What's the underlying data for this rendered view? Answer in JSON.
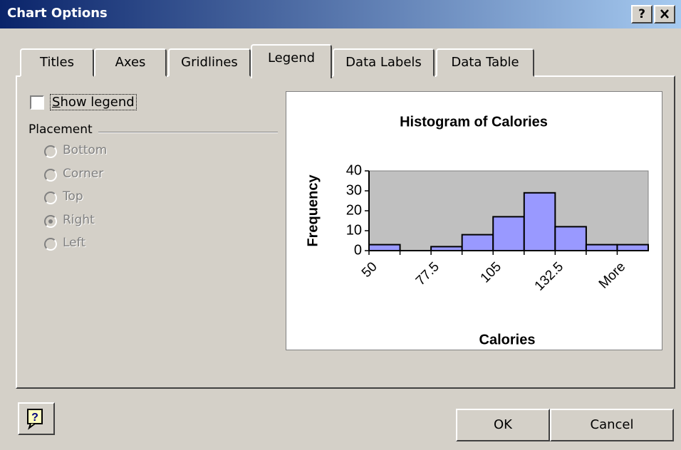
{
  "title_bar": {
    "title": "Chart Options",
    "help_button": "?"
  },
  "tabs": [
    {
      "label": "Titles",
      "selected": false
    },
    {
      "label": "Axes",
      "selected": false
    },
    {
      "label": "Gridlines",
      "selected": false
    },
    {
      "label": "Legend",
      "selected": true
    },
    {
      "label": "Data Labels",
      "selected": false
    },
    {
      "label": "Data Table",
      "selected": false
    }
  ],
  "show_legend": {
    "label": "Show legend",
    "checked": false
  },
  "placement": {
    "label": "Placement",
    "enabled": false,
    "options": [
      {
        "label": "Bottom",
        "selected": false
      },
      {
        "label": "Corner",
        "selected": false
      },
      {
        "label": "Top",
        "selected": false
      },
      {
        "label": "Right",
        "selected": true
      },
      {
        "label": "Left",
        "selected": false
      }
    ]
  },
  "chart_data": {
    "type": "bar",
    "title": "Histogram of Calories",
    "x_label": "Calories",
    "y_label": "Frequency",
    "categories": [
      "50",
      null,
      "77.5",
      null,
      "105",
      null,
      "132.5",
      null,
      "More"
    ],
    "values": [
      3,
      0,
      2,
      8,
      17,
      29,
      12,
      3,
      3
    ],
    "color": "#9999ff",
    "plot_background": "#c0c0c0",
    "ylim": [
      0,
      40
    ],
    "yticks": [
      0,
      10,
      20,
      30,
      40
    ]
  },
  "buttons": [
    "OK",
    "Cancel"
  ]
}
